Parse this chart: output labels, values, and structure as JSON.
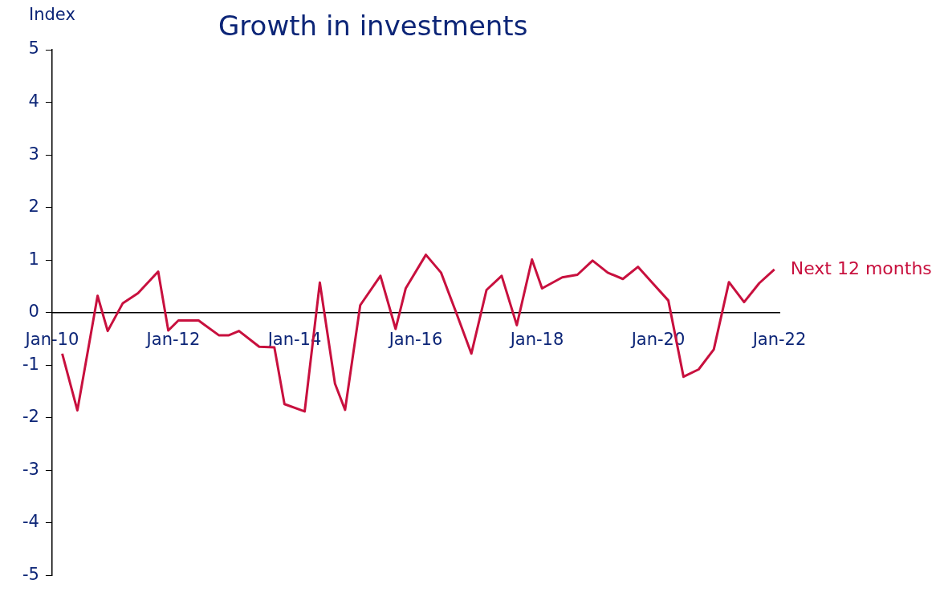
{
  "chart_data": {
    "type": "line",
    "title": "Growth in investments",
    "ylabel": "Index",
    "x": [
      "2010-03",
      "2010-06",
      "2010-10",
      "2010-12",
      "2011-03",
      "2011-06",
      "2011-10",
      "2011-12",
      "2012-02",
      "2012-06",
      "2012-10",
      "2012-12",
      "2013-02",
      "2013-06",
      "2013-09",
      "2013-11",
      "2014-03",
      "2014-06",
      "2014-09",
      "2014-11",
      "2015-02",
      "2015-06",
      "2015-09",
      "2015-11",
      "2016-03",
      "2016-06",
      "2016-09",
      "2016-12",
      "2017-03",
      "2017-06",
      "2017-09",
      "2017-12",
      "2018-02",
      "2018-06",
      "2018-09",
      "2018-12",
      "2019-03",
      "2019-06",
      "2019-09",
      "2019-12",
      "2020-03",
      "2020-06",
      "2020-09",
      "2020-12",
      "2021-03",
      "2021-06",
      "2021-09",
      "2021-12"
    ],
    "series": [
      {
        "name": "Next 12 months",
        "color": "#c8103e",
        "values": [
          -0.78,
          -1.86,
          0.32,
          -0.35,
          0.18,
          0.37,
          0.78,
          -0.34,
          -0.15,
          -0.15,
          -0.43,
          -0.43,
          -0.35,
          -0.65,
          -0.66,
          -1.74,
          -1.88,
          0.57,
          -1.35,
          -1.85,
          0.14,
          0.7,
          -0.31,
          0.46,
          1.1,
          0.76,
          0,
          -0.78,
          0.43,
          0.7,
          -0.24,
          1.01,
          0.46,
          0.67,
          0.72,
          0.99,
          0.76,
          0.64,
          0.87,
          0.55,
          0.23,
          -1.22,
          -1.08,
          -0.7,
          0.58,
          0.2,
          0.56,
          0.82
        ]
      }
    ],
    "xlim": [
      "2010-01",
      "2022-01"
    ],
    "xticks": [
      {
        "value": "2010-01",
        "label": "Jan-10"
      },
      {
        "value": "2012-01",
        "label": "Jan-12"
      },
      {
        "value": "2014-01",
        "label": "Jan-14"
      },
      {
        "value": "2016-01",
        "label": "Jan-16"
      },
      {
        "value": "2018-01",
        "label": "Jan-18"
      },
      {
        "value": "2020-01",
        "label": "Jan-20"
      },
      {
        "value": "2022-01",
        "label": "Jan-22"
      }
    ],
    "ylim": [
      -5,
      5
    ],
    "yticks": [
      -5,
      -4,
      -3,
      -2,
      -1,
      0,
      1,
      2,
      3,
      4,
      5
    ],
    "grid": false,
    "marker": "none",
    "line_style": "solid"
  }
}
